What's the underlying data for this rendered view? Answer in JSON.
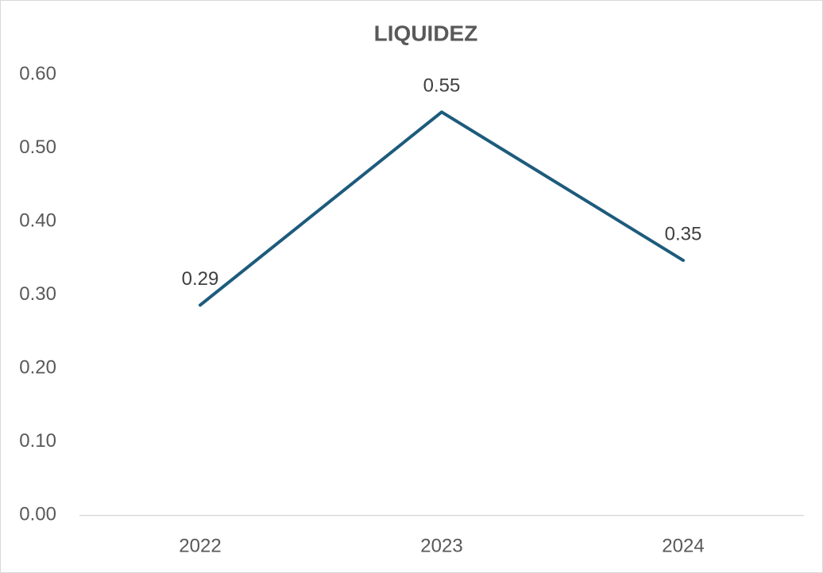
{
  "chart_data": {
    "type": "line",
    "title": "LIQUIDEZ",
    "categories": [
      "2022",
      "2023",
      "2024"
    ],
    "values": [
      0.286,
      0.549,
      0.347
    ],
    "value_labels": [
      "0.29",
      "0.55",
      "0.35"
    ],
    "color": "#1d5b7c",
    "ylim": [
      0,
      0.6
    ],
    "yticks": [
      {
        "value": 0,
        "label": "0.00"
      },
      {
        "value": 0.1,
        "label": "0.10"
      },
      {
        "value": 0.2,
        "label": "0.20"
      },
      {
        "value": 0.3,
        "label": "0.30"
      },
      {
        "value": 0.4,
        "label": "0.40"
      },
      {
        "value": 0.5,
        "label": "0.50"
      },
      {
        "value": 0.6,
        "label": "0.60"
      }
    ],
    "grid": false
  }
}
